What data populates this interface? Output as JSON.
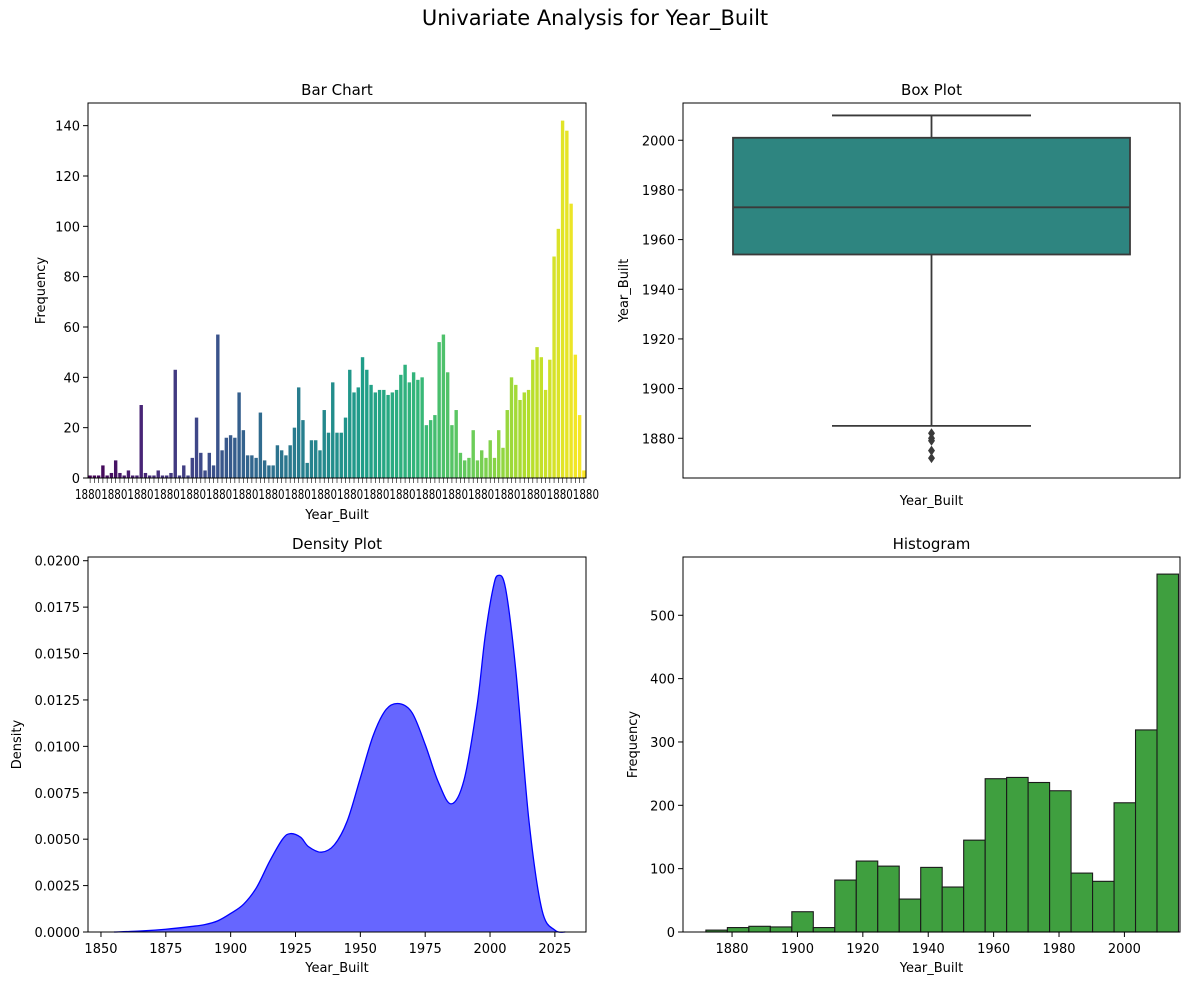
{
  "suptitle": "Univariate Analysis for Year_Built",
  "chart_data": [
    {
      "type": "bar",
      "title": "Bar Chart",
      "xlabel": "Year_Built",
      "ylabel": "Frequency",
      "ylim": [
        0,
        149
      ],
      "yticks": [
        0,
        20,
        40,
        60,
        80,
        100,
        120,
        140
      ],
      "colormap": "viridis",
      "note_x_ticks": "category tick labels are overplotted and illegible",
      "values": [
        1,
        1,
        1,
        5,
        1,
        2,
        7,
        2,
        1,
        3,
        1,
        1,
        29,
        2,
        1,
        1,
        3,
        1,
        1,
        2,
        43,
        1,
        5,
        1,
        8,
        24,
        10,
        3,
        10,
        5,
        57,
        11,
        16,
        17,
        16,
        34,
        19,
        9,
        9,
        8,
        26,
        7,
        5,
        5,
        13,
        11,
        9,
        13,
        20,
        36,
        23,
        6,
        15,
        15,
        11,
        27,
        18,
        38,
        18,
        18,
        24,
        43,
        34,
        36,
        48,
        43,
        37,
        34,
        35,
        35,
        33,
        34,
        35,
        41,
        45,
        38,
        42,
        39,
        40,
        21,
        23,
        25,
        54,
        57,
        42,
        21,
        27,
        10,
        7,
        8,
        19,
        7,
        11,
        8,
        15,
        8,
        19,
        12,
        27,
        40,
        37,
        31,
        34,
        35,
        47,
        52,
        48,
        35,
        47,
        88,
        99,
        142,
        138,
        109,
        49,
        25,
        3
      ]
    },
    {
      "type": "box",
      "title": "Box Plot",
      "xlabel": "Year_Built",
      "ylabel": "Year_Built",
      "ylim": [
        1864,
        2015
      ],
      "yticks": [
        1880,
        1900,
        1920,
        1940,
        1960,
        1980,
        2000
      ],
      "whisker_low": 1885,
      "q1": 1954,
      "median": 1973,
      "q3": 2001,
      "whisker_high": 2010,
      "outliers": [
        1872,
        1875,
        1879,
        1880,
        1882
      ],
      "color": "#2e8580"
    },
    {
      "type": "area",
      "title": "Density Plot",
      "xlabel": "Year_Built",
      "ylabel": "Density",
      "xlim": [
        1845,
        2037
      ],
      "ylim": [
        0,
        0.0202
      ],
      "xticks": [
        1850,
        1875,
        1900,
        1925,
        1950,
        1975,
        2000,
        2025
      ],
      "yticks": [
        "0.0000",
        "0.0025",
        "0.0050",
        "0.0075",
        "0.0100",
        "0.0125",
        "0.0150",
        "0.0175",
        "0.0200"
      ],
      "color": "#6666ff",
      "line_color": "#0000ff",
      "x": [
        1855,
        1865,
        1875,
        1885,
        1890,
        1895,
        1900,
        1905,
        1910,
        1915,
        1920,
        1923,
        1927,
        1930,
        1935,
        1940,
        1945,
        1950,
        1955,
        1960,
        1965,
        1970,
        1975,
        1980,
        1985,
        1990,
        1995,
        1998,
        2001,
        2003,
        2006,
        2010,
        2015,
        2020,
        2025,
        2029
      ],
      "y": [
        0.0,
        5e-05,
        0.00015,
        0.0003,
        0.0004,
        0.0006,
        0.001,
        0.0015,
        0.0024,
        0.0038,
        0.005,
        0.0053,
        0.0051,
        0.0046,
        0.0043,
        0.0047,
        0.006,
        0.0083,
        0.0106,
        0.012,
        0.0123,
        0.0118,
        0.0101,
        0.0081,
        0.0069,
        0.0082,
        0.0122,
        0.0158,
        0.0184,
        0.0192,
        0.0185,
        0.014,
        0.006,
        0.0012,
        0.0001,
        0.0
      ]
    },
    {
      "type": "bar",
      "title": "Histogram",
      "xlabel": "Year_Built",
      "ylabel": "Frequency",
      "xlim": [
        1865,
        2017
      ],
      "ylim": [
        0,
        592
      ],
      "xticks": [
        1880,
        1900,
        1920,
        1940,
        1960,
        1980,
        2000
      ],
      "yticks": [
        0,
        100,
        200,
        300,
        400,
        500
      ],
      "bin_start": 1872,
      "bin_width": 6.57,
      "values": [
        3,
        7,
        9,
        8,
        32,
        7,
        82,
        112,
        104,
        52,
        102,
        71,
        145,
        242,
        244,
        236,
        223,
        93,
        80,
        204,
        319,
        565
      ],
      "color": "#3f9f3f"
    }
  ]
}
